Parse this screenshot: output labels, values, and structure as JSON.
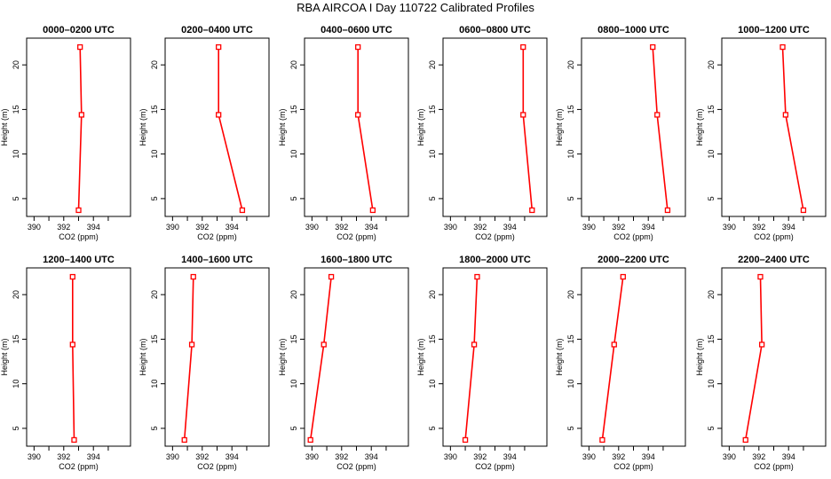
{
  "figure": {
    "title": "RBA AIRCOA I  Day 110722  Calibrated Profiles"
  },
  "chart_data": [
    {
      "type": "line",
      "title": "0000–0200 UTC",
      "xlabel": "CO2 (ppm)",
      "ylabel": "Height (m)",
      "xlim": [
        389.5,
        396.5
      ],
      "ylim": [
        3,
        23
      ],
      "xticks": [
        390,
        392,
        394
      ],
      "yticks": [
        5,
        10,
        15,
        20
      ],
      "series": [
        {
          "color": "#ff0000",
          "points": [
            [
              393.1,
              22
            ],
            [
              393.2,
              14.4
            ],
            [
              393.0,
              3.7
            ]
          ]
        }
      ]
    },
    {
      "type": "line",
      "title": "0200–0400 UTC",
      "xlabel": "CO2 (ppm)",
      "ylabel": "Height (m)",
      "xlim": [
        389.5,
        396.5
      ],
      "ylim": [
        3,
        23
      ],
      "xticks": [
        390,
        392,
        394
      ],
      "yticks": [
        5,
        10,
        15,
        20
      ],
      "series": [
        {
          "color": "#ff0000",
          "points": [
            [
              393.1,
              22
            ],
            [
              393.1,
              14.4
            ],
            [
              394.7,
              3.7
            ]
          ]
        }
      ]
    },
    {
      "type": "line",
      "title": "0400–0600 UTC",
      "xlabel": "CO2 (ppm)",
      "ylabel": "Height (m)",
      "xlim": [
        389.5,
        396.5
      ],
      "ylim": [
        3,
        23
      ],
      "xticks": [
        390,
        392,
        394
      ],
      "yticks": [
        5,
        10,
        15,
        20
      ],
      "series": [
        {
          "color": "#ff0000",
          "points": [
            [
              393.1,
              22
            ],
            [
              393.1,
              14.4
            ],
            [
              394.1,
              3.7
            ]
          ]
        }
      ]
    },
    {
      "type": "line",
      "title": "0600–0800 UTC",
      "xlabel": "CO2 (ppm)",
      "ylabel": "Height (m)",
      "xlim": [
        389.5,
        396.5
      ],
      "ylim": [
        3,
        23
      ],
      "xticks": [
        390,
        392,
        394
      ],
      "yticks": [
        5,
        10,
        15,
        20
      ],
      "series": [
        {
          "color": "#ff0000",
          "points": [
            [
              394.9,
              22
            ],
            [
              394.9,
              14.4
            ],
            [
              395.5,
              3.7
            ]
          ]
        }
      ]
    },
    {
      "type": "line",
      "title": "0800–1000 UTC",
      "xlabel": "CO2 (ppm)",
      "ylabel": "Height (m)",
      "xlim": [
        389.5,
        396.5
      ],
      "ylim": [
        3,
        23
      ],
      "xticks": [
        390,
        392,
        394
      ],
      "yticks": [
        5,
        10,
        15,
        20
      ],
      "series": [
        {
          "color": "#ff0000",
          "points": [
            [
              394.3,
              22
            ],
            [
              394.6,
              14.4
            ],
            [
              395.3,
              3.7
            ]
          ]
        }
      ]
    },
    {
      "type": "line",
      "title": "1000–1200 UTC",
      "xlabel": "CO2 (ppm)",
      "ylabel": "Height (m)",
      "xlim": [
        389.5,
        396.5
      ],
      "ylim": [
        3,
        23
      ],
      "xticks": [
        390,
        392,
        394
      ],
      "yticks": [
        5,
        10,
        15,
        20
      ],
      "series": [
        {
          "color": "#ff0000",
          "points": [
            [
              393.6,
              22
            ],
            [
              393.8,
              14.4
            ],
            [
              395.0,
              3.7
            ]
          ]
        }
      ]
    },
    {
      "type": "line",
      "title": "1200–1400 UTC",
      "xlabel": "CO2 (ppm)",
      "ylabel": "Height (m)",
      "xlim": [
        389.5,
        396.5
      ],
      "ylim": [
        3,
        23
      ],
      "xticks": [
        390,
        392,
        394
      ],
      "yticks": [
        5,
        10,
        15,
        20
      ],
      "series": [
        {
          "color": "#ff0000",
          "points": [
            [
              392.6,
              22
            ],
            [
              392.6,
              14.4
            ],
            [
              392.7,
              3.7
            ]
          ]
        }
      ]
    },
    {
      "type": "line",
      "title": "1400–1600 UTC",
      "xlabel": "CO2 (ppm)",
      "ylabel": "Height (m)",
      "xlim": [
        389.5,
        396.5
      ],
      "ylim": [
        3,
        23
      ],
      "xticks": [
        390,
        392,
        394
      ],
      "yticks": [
        5,
        10,
        15,
        20
      ],
      "series": [
        {
          "color": "#ff0000",
          "points": [
            [
              391.4,
              22
            ],
            [
              391.3,
              14.4
            ],
            [
              390.8,
              3.7
            ]
          ]
        }
      ]
    },
    {
      "type": "line",
      "title": "1600–1800 UTC",
      "xlabel": "CO2 (ppm)",
      "ylabel": "Height (m)",
      "xlim": [
        389.5,
        396.5
      ],
      "ylim": [
        3,
        23
      ],
      "xticks": [
        390,
        392,
        394
      ],
      "yticks": [
        5,
        10,
        15,
        20
      ],
      "series": [
        {
          "color": "#ff0000",
          "points": [
            [
              391.3,
              22
            ],
            [
              390.8,
              14.4
            ],
            [
              389.9,
              3.7
            ]
          ]
        }
      ]
    },
    {
      "type": "line",
      "title": "1800–2000 UTC",
      "xlabel": "CO2 (ppm)",
      "ylabel": "Height (m)",
      "xlim": [
        389.5,
        396.5
      ],
      "ylim": [
        3,
        23
      ],
      "xticks": [
        390,
        392,
        394
      ],
      "yticks": [
        5,
        10,
        15,
        20
      ],
      "series": [
        {
          "color": "#ff0000",
          "points": [
            [
              391.8,
              22
            ],
            [
              391.6,
              14.4
            ],
            [
              391.0,
              3.7
            ]
          ]
        }
      ]
    },
    {
      "type": "line",
      "title": "2000–2200 UTC",
      "xlabel": "CO2 (ppm)",
      "ylabel": "Height (m)",
      "xlim": [
        389.5,
        396.5
      ],
      "ylim": [
        3,
        23
      ],
      "xticks": [
        390,
        392,
        394
      ],
      "yticks": [
        5,
        10,
        15,
        20
      ],
      "series": [
        {
          "color": "#ff0000",
          "points": [
            [
              392.3,
              22
            ],
            [
              391.7,
              14.4
            ],
            [
              390.9,
              3.7
            ]
          ]
        }
      ]
    },
    {
      "type": "line",
      "title": "2200–2400 UTC",
      "xlabel": "CO2 (ppm)",
      "ylabel": "Height (m)",
      "xlim": [
        389.5,
        396.5
      ],
      "ylim": [
        3,
        23
      ],
      "xticks": [
        390,
        392,
        394
      ],
      "yticks": [
        5,
        10,
        15,
        20
      ],
      "series": [
        {
          "color": "#ff0000",
          "points": [
            [
              392.1,
              22
            ],
            [
              392.2,
              14.4
            ],
            [
              391.1,
              3.7
            ]
          ]
        }
      ]
    }
  ]
}
